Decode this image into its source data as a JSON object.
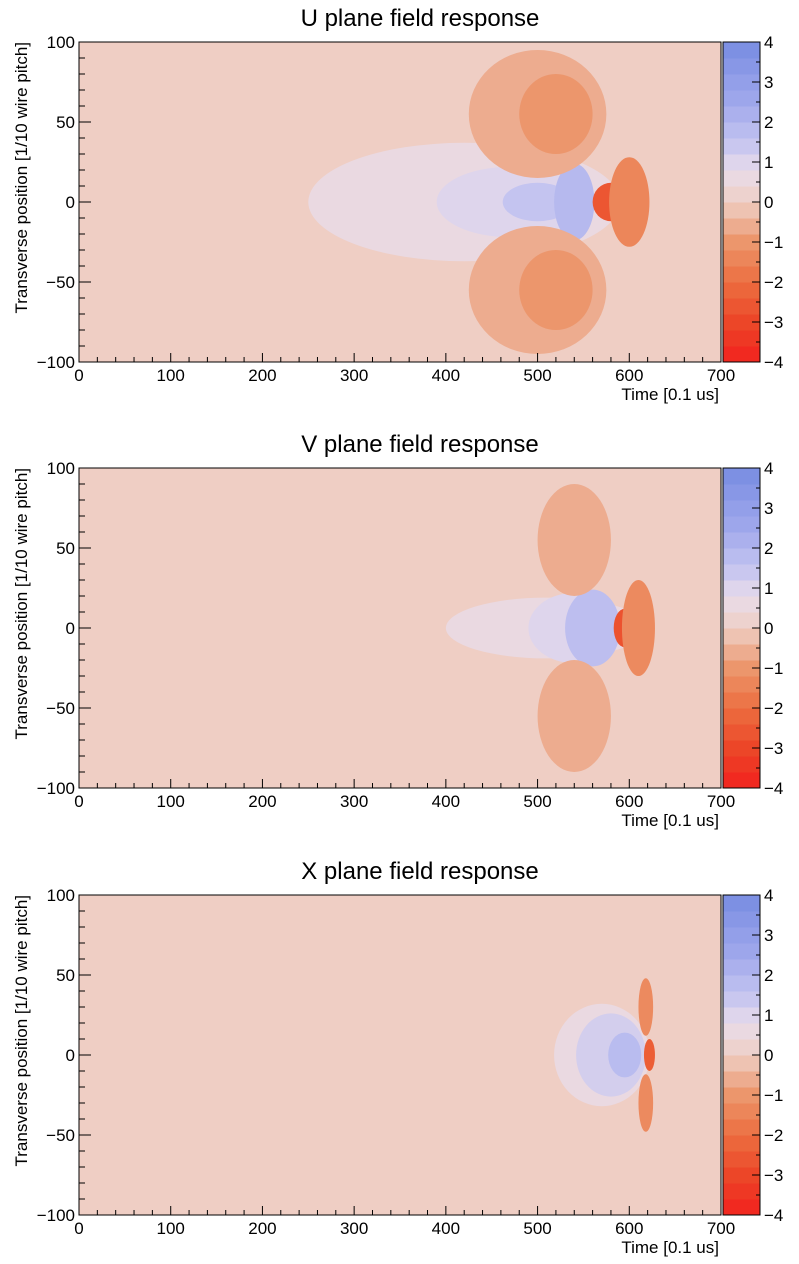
{
  "chart_data": [
    {
      "type": "heatmap",
      "title": "U plane field response",
      "xlabel": "Time [0.1 us]",
      "ylabel": "Transverse position [1/10 wire pitch]",
      "xlim": [
        0,
        700
      ],
      "ylim": [
        -100,
        100
      ],
      "xticks": [
        0,
        100,
        200,
        300,
        400,
        500,
        600,
        700
      ],
      "yticks": [
        -100,
        -50,
        0,
        50,
        100
      ],
      "zlim": [
        -4,
        4
      ],
      "zticks": [
        -4,
        -3,
        -2,
        -1,
        0,
        1,
        2,
        3,
        4
      ],
      "grid": false,
      "background_value": 0,
      "features": [
        {
          "kind": "ellipse",
          "cx": 420,
          "cy": 0,
          "rx": 170,
          "ry": 37,
          "value": 0.6
        },
        {
          "kind": "ellipse",
          "cx": 470,
          "cy": 0,
          "rx": 80,
          "ry": 22,
          "value": 1.0
        },
        {
          "kind": "ellipse",
          "cx": 500,
          "cy": 0,
          "rx": 38,
          "ry": 12,
          "value": 1.5
        },
        {
          "kind": "ellipse",
          "cx": 540,
          "cy": 0,
          "rx": 22,
          "ry": 24,
          "value": 1.9
        },
        {
          "kind": "ellipse",
          "cx": 500,
          "cy": 55,
          "rx": 75,
          "ry": 40,
          "value": -0.6
        },
        {
          "kind": "ellipse",
          "cx": 500,
          "cy": -55,
          "rx": 75,
          "ry": 40,
          "value": -0.6
        },
        {
          "kind": "ellipse",
          "cx": 520,
          "cy": 55,
          "rx": 40,
          "ry": 25,
          "value": -1.0
        },
        {
          "kind": "ellipse",
          "cx": 520,
          "cy": -55,
          "rx": 40,
          "ry": 25,
          "value": -1.0
        },
        {
          "kind": "ellipse",
          "cx": 580,
          "cy": 0,
          "rx": 20,
          "ry": 12,
          "value": -2.6
        },
        {
          "kind": "ellipse",
          "cx": 600,
          "cy": 0,
          "rx": 22,
          "ry": 28,
          "value": -1.4
        }
      ]
    },
    {
      "type": "heatmap",
      "title": "V plane field response",
      "xlabel": "Time [0.1 us]",
      "ylabel": "Transverse position [1/10 wire pitch]",
      "xlim": [
        0,
        700
      ],
      "ylim": [
        -100,
        100
      ],
      "xticks": [
        0,
        100,
        200,
        300,
        400,
        500,
        600,
        700
      ],
      "yticks": [
        -100,
        -50,
        0,
        50,
        100
      ],
      "zlim": [
        -4,
        4
      ],
      "zticks": [
        -4,
        -3,
        -2,
        -1,
        0,
        1,
        2,
        3,
        4
      ],
      "grid": false,
      "background_value": 0,
      "features": [
        {
          "kind": "ellipse",
          "cx": 510,
          "cy": 0,
          "rx": 110,
          "ry": 19,
          "value": 0.6
        },
        {
          "kind": "ellipse",
          "cx": 540,
          "cy": 0,
          "rx": 50,
          "ry": 22,
          "value": 1.0
        },
        {
          "kind": "ellipse",
          "cx": 560,
          "cy": 0,
          "rx": 30,
          "ry": 24,
          "value": 1.7
        },
        {
          "kind": "ellipse",
          "cx": 540,
          "cy": 55,
          "rx": 40,
          "ry": 35,
          "value": -0.6
        },
        {
          "kind": "ellipse",
          "cx": 540,
          "cy": -55,
          "rx": 40,
          "ry": 35,
          "value": -0.6
        },
        {
          "kind": "ellipse",
          "cx": 595,
          "cy": 0,
          "rx": 12,
          "ry": 12,
          "value": -2.7
        },
        {
          "kind": "ellipse",
          "cx": 610,
          "cy": 0,
          "rx": 18,
          "ry": 30,
          "value": -1.3
        }
      ]
    },
    {
      "type": "heatmap",
      "title": "X plane field response",
      "xlabel": "Time [0.1 us]",
      "ylabel": "Transverse position [1/10 wire pitch]",
      "xlim": [
        0,
        700
      ],
      "ylim": [
        -100,
        100
      ],
      "xticks": [
        0,
        100,
        200,
        300,
        400,
        500,
        600,
        700
      ],
      "yticks": [
        -100,
        -50,
        0,
        50,
        100
      ],
      "zlim": [
        -4,
        4
      ],
      "zticks": [
        -4,
        -3,
        -2,
        -1,
        0,
        1,
        2,
        3,
        4
      ],
      "grid": false,
      "background_value": 0,
      "features": [
        {
          "kind": "ellipse",
          "cx": 570,
          "cy": 0,
          "rx": 52,
          "ry": 32,
          "value": 0.6
        },
        {
          "kind": "ellipse",
          "cx": 580,
          "cy": 0,
          "rx": 38,
          "ry": 26,
          "value": 1.2
        },
        {
          "kind": "ellipse",
          "cx": 595,
          "cy": 0,
          "rx": 18,
          "ry": 14,
          "value": 1.8
        },
        {
          "kind": "ellipse",
          "cx": 618,
          "cy": 30,
          "rx": 8,
          "ry": 18,
          "value": -1.3
        },
        {
          "kind": "ellipse",
          "cx": 618,
          "cy": -30,
          "rx": 8,
          "ry": 18,
          "value": -1.3
        },
        {
          "kind": "ellipse",
          "cx": 622,
          "cy": 0,
          "rx": 6,
          "ry": 10,
          "value": -2.4
        }
      ]
    }
  ]
}
